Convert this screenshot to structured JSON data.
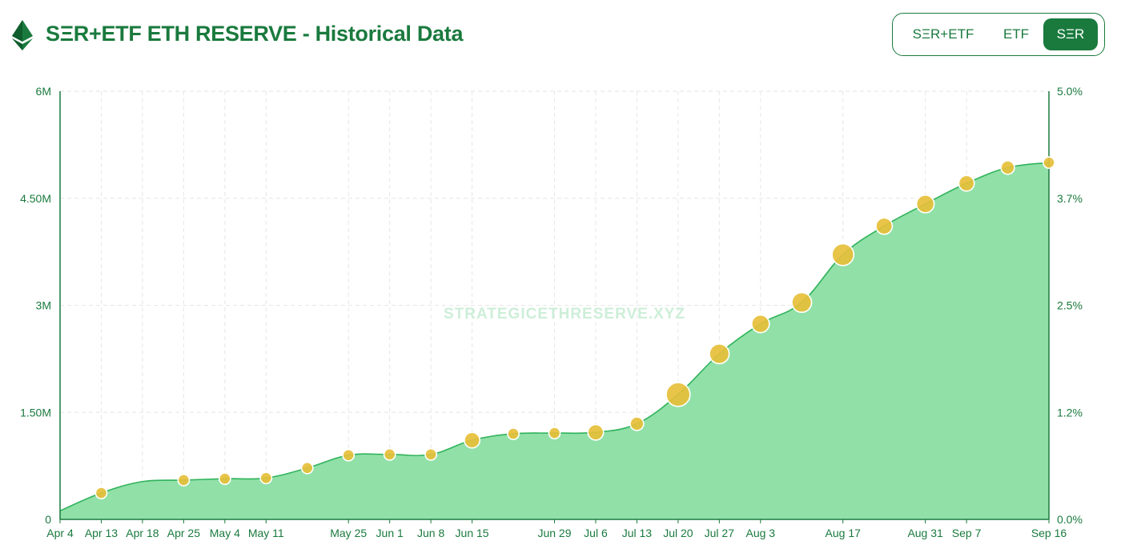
{
  "header": {
    "title": "SΞR+ETF ETH RESERVE - Historical Data",
    "toggle": [
      "SΞR+ETF",
      "ETF",
      "SΞR"
    ],
    "active": "SΞR"
  },
  "watermark": "STRATEGICETHRESERVE.XYZ",
  "colors": {
    "brand": "#1a7a3e",
    "area_fill": "#90e0a8",
    "area_line": "#2fb35a",
    "point": "#e6bf3a"
  },
  "chart_data": {
    "type": "area",
    "x": [
      "Apr 4",
      "Apr 13",
      "Apr 18",
      "Apr 25",
      "May 4",
      "May 11",
      "May 18",
      "May 25",
      "Jun 1",
      "Jun 8",
      "Jun 15",
      "Jun 22",
      "Jun 29",
      "Jul 6",
      "Jul 13",
      "Jul 20",
      "Jul 27",
      "Aug 3",
      "Aug 10",
      "Aug 17",
      "Aug 24",
      "Aug 31",
      "Sep 7",
      "Sep 14",
      "Sep 16"
    ],
    "values": [
      120000,
      370000,
      530000,
      550000,
      570000,
      580000,
      720000,
      900000,
      910000,
      910000,
      1110000,
      1200000,
      1210000,
      1220000,
      1340000,
      1750000,
      2320000,
      2740000,
      3040000,
      3710000,
      4110000,
      4420000,
      4710000,
      4930000,
      5000000
    ],
    "points_shown": [
      false,
      true,
      false,
      true,
      true,
      true,
      true,
      true,
      true,
      true,
      true,
      true,
      true,
      true,
      true,
      true,
      true,
      true,
      true,
      true,
      true,
      true,
      true,
      true,
      true
    ],
    "point_size": [
      0,
      1,
      0,
      1,
      1,
      1,
      1,
      1,
      1,
      1,
      2,
      1,
      1,
      2,
      1.5,
      4,
      3,
      2.5,
      3,
      3.5,
      2.2,
      2.5,
      2,
      1.5,
      1
    ],
    "x_tick_labels": [
      "Apr 4",
      "Apr 13",
      "Apr 18",
      "Apr 25",
      "May 4",
      "May 11",
      "May 25",
      "Jun 1",
      "Jun 8",
      "Jun 15",
      "Jun 29",
      "Jul 6",
      "Jul 13",
      "Jul 20",
      "Jul 27",
      "Aug 3",
      "Aug 17",
      "Aug 31",
      "Sep 7",
      "Sep 16"
    ],
    "y_left_ticks": [
      "0",
      "1.50M",
      "3M",
      "4.50M",
      "6M"
    ],
    "y_right_ticks": [
      "0.0%",
      "1.2%",
      "2.5%",
      "3.7%",
      "5.0%"
    ],
    "ylim": [
      0,
      6000000
    ],
    "grid": true
  }
}
